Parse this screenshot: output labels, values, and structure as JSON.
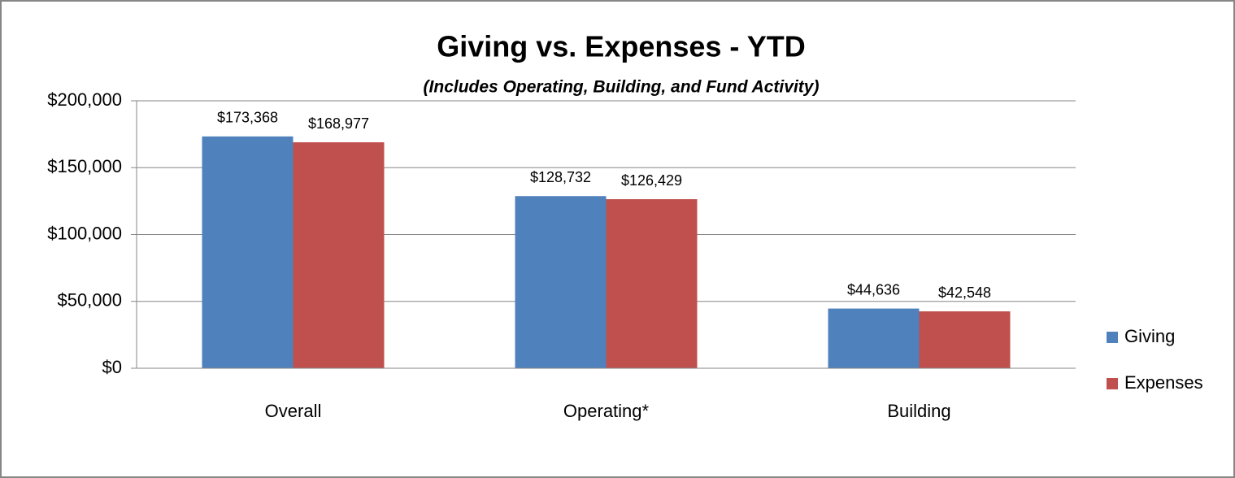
{
  "chart_data": {
    "type": "bar",
    "title": "Giving vs. Expenses - YTD",
    "subtitle": "(Includes Operating, Building, and Fund Activity)",
    "categories": [
      "Overall",
      "Operating*",
      "Building"
    ],
    "series": [
      {
        "name": "Giving",
        "color": "#4f81bd",
        "values": [
          173368,
          128732,
          44636
        ],
        "value_labels": [
          "$173,368",
          "$128,732",
          "$44,636"
        ]
      },
      {
        "name": "Expenses",
        "color": "#c0504d",
        "values": [
          168977,
          126429,
          42548
        ],
        "value_labels": [
          "$168,977",
          "$126,429",
          "$42,548"
        ]
      }
    ],
    "ylim": [
      0,
      200000
    ],
    "yticks": [
      {
        "value": 0,
        "label": "$0"
      },
      {
        "value": 50000,
        "label": "$50,000"
      },
      {
        "value": 100000,
        "label": "$100,000"
      },
      {
        "value": 150000,
        "label": "$150,000"
      },
      {
        "value": 200000,
        "label": "$200,000"
      }
    ],
    "grid": true,
    "legend": "right"
  }
}
